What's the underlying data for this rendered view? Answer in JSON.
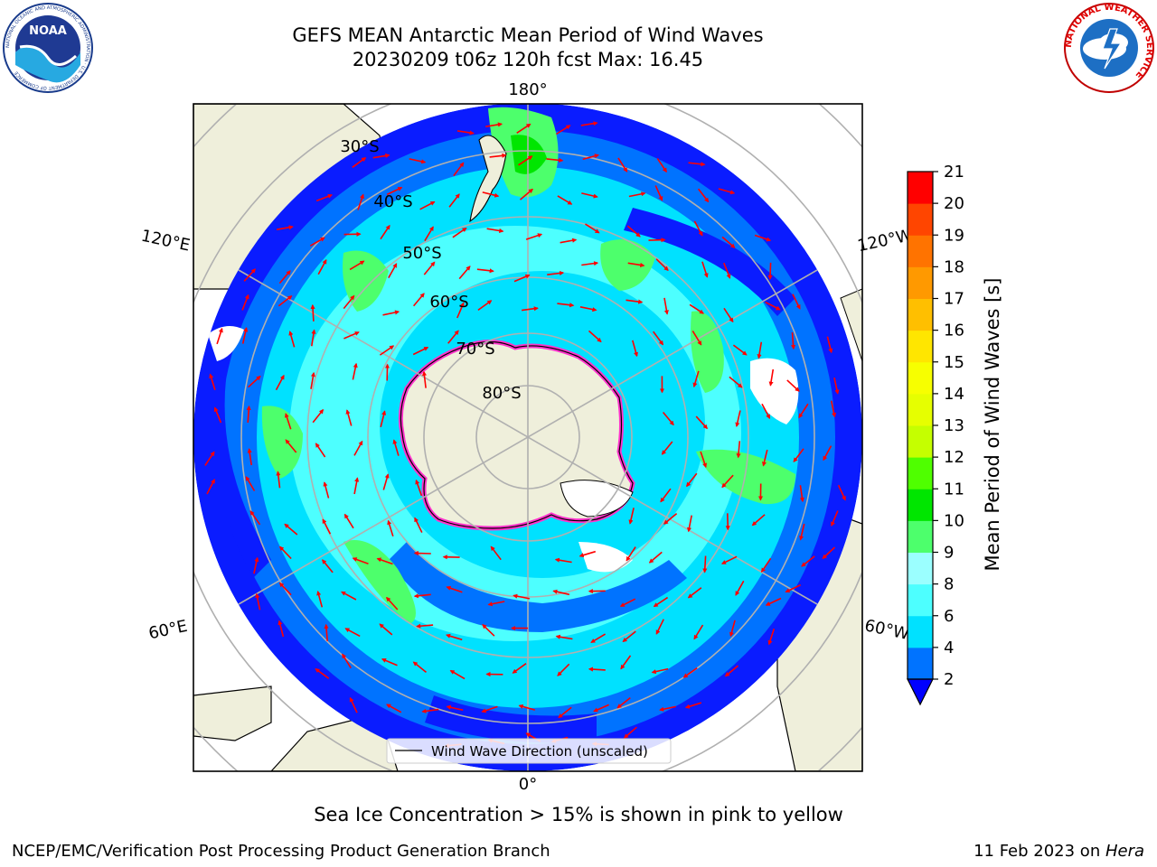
{
  "title": {
    "line1": "GEFS MEAN Antarctic Mean Period of Wind Waves",
    "line2": "20230209 t06z 120h fcst   Max: 16.45"
  },
  "logos": {
    "noaa": {
      "text": "NOAA",
      "ring": "NATIONAL OCEANIC AND ATMOSPHERIC ADMINISTRATION · U.S. DEPARTMENT OF COMMERCE"
    },
    "nws": {
      "ring": "NATIONAL WEATHER SERVICE"
    }
  },
  "map": {
    "projection": "south-polar-stereographic",
    "longitude_labels": [
      "180°",
      "120°E",
      "120°W",
      "60°E",
      "60°W",
      "0°"
    ],
    "latitude_labels": [
      "30°S",
      "40°S",
      "50°S",
      "60°S",
      "70°S",
      "80°S"
    ],
    "legend": {
      "label": "Wind Wave Direction (unscaled)"
    },
    "arrow_icon": "red-arrow-icon"
  },
  "colorbar": {
    "label": "Mean Period of Wind Waves [s]",
    "ticks": [
      "2",
      "4",
      "6",
      "8",
      "9",
      "10",
      "11",
      "12",
      "13",
      "14",
      "15",
      "16",
      "17",
      "18",
      "19",
      "20",
      "21"
    ],
    "colors": [
      "#0073ff",
      "#00e1ff",
      "#4dffff",
      "#9bffff",
      "#4dff6c",
      "#00e600",
      "#4fff00",
      "#c5ff00",
      "#e6ff00",
      "#f7ff00",
      "#ffe600",
      "#ffbf00",
      "#ff9900",
      "#ff7300",
      "#ff4500",
      "#ff0000"
    ],
    "under_color": "#0000ff",
    "data_max": 16.45
  },
  "caption": "Sea Ice Concentration > 15% is shown in pink to yellow",
  "footer": {
    "left": "NCEP/EMC/Verification Post Processing Product Generation Branch",
    "right_date": "11 Feb 2023 on ",
    "right_host": "Hera"
  }
}
